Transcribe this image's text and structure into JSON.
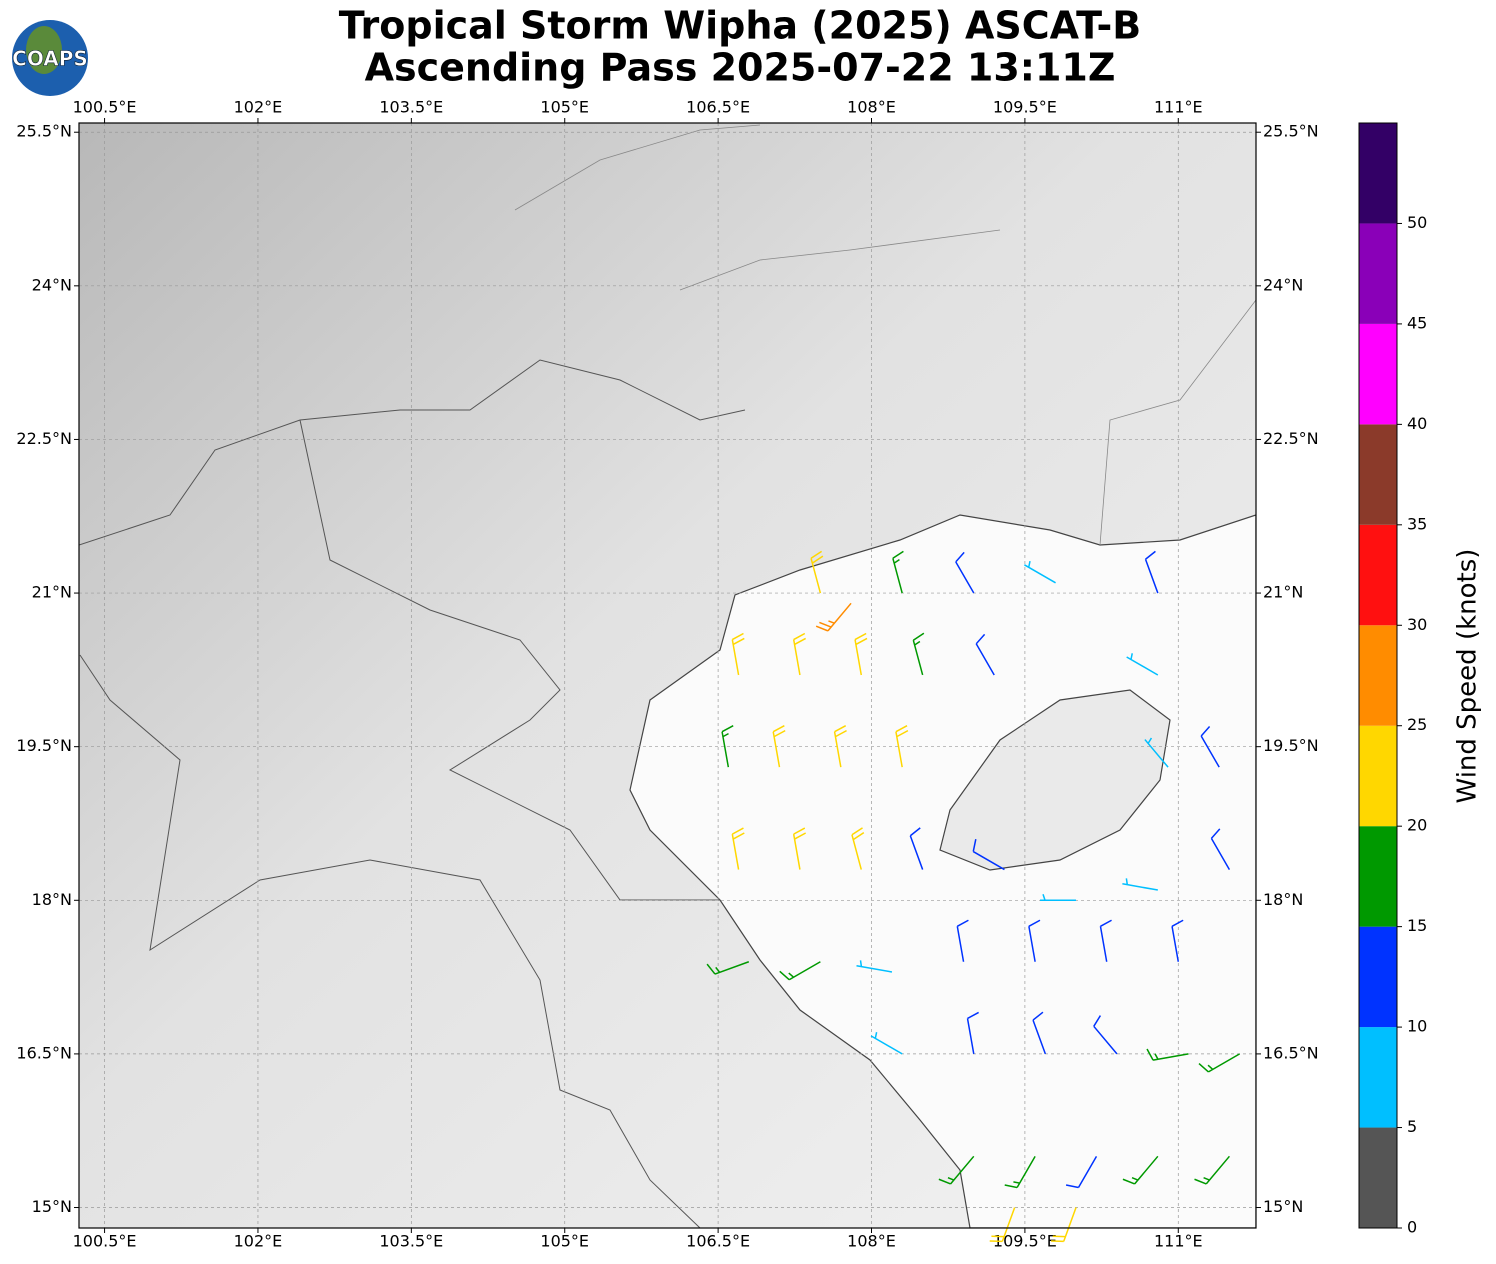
{
  "title": [
    "Tropical Storm Wipha (2025) ASCAT-B",
    "Ascending Pass 2025-07-22 13:11Z"
  ],
  "logo": "COAPS",
  "map": {
    "lonlim": [
      100.25,
      111.76
    ],
    "latlim": [
      14.8,
      25.59
    ],
    "grid": true,
    "lonticks": [
      {
        "value": 100.5,
        "label": "100.5°E"
      },
      {
        "value": 102,
        "label": "102°E"
      },
      {
        "value": 103.5,
        "label": "103.5°E"
      },
      {
        "value": 105,
        "label": "105°E"
      },
      {
        "value": 106.5,
        "label": "106.5°E"
      },
      {
        "value": 108,
        "label": "108°E"
      },
      {
        "value": 109.5,
        "label": "109.5°E"
      },
      {
        "value": 111,
        "label": "111°E"
      }
    ],
    "latticks": [
      {
        "value": 25.5,
        "label": "25.5°N"
      },
      {
        "value": 24,
        "label": "24°N"
      },
      {
        "value": 22.5,
        "label": "22.5°N"
      },
      {
        "value": 21,
        "label": "21°N"
      },
      {
        "value": 19.5,
        "label": "19.5°N"
      },
      {
        "value": 18,
        "label": "18°N"
      },
      {
        "value": 16.5,
        "label": "16.5°N"
      },
      {
        "value": 15,
        "label": "15°N"
      }
    ],
    "barbs": [
      {
        "lon": 107.5,
        "lat": 21.0,
        "speed": 22,
        "dir": 345
      },
      {
        "lon": 108.3,
        "lat": 21.0,
        "speed": 17,
        "dir": 345
      },
      {
        "lon": 109.0,
        "lat": 21.0,
        "speed": 13,
        "dir": 330
      },
      {
        "lon": 109.8,
        "lat": 21.1,
        "speed": 8,
        "dir": 300
      },
      {
        "lon": 110.8,
        "lat": 21.0,
        "speed": 12,
        "dir": 340
      },
      {
        "lon": 107.8,
        "lat": 20.9,
        "speed": 27,
        "dir": 220
      },
      {
        "lon": 106.7,
        "lat": 20.2,
        "speed": 22,
        "dir": 350
      },
      {
        "lon": 107.3,
        "lat": 20.2,
        "speed": 22,
        "dir": 350
      },
      {
        "lon": 107.9,
        "lat": 20.2,
        "speed": 22,
        "dir": 350
      },
      {
        "lon": 108.5,
        "lat": 20.2,
        "speed": 18,
        "dir": 345
      },
      {
        "lon": 109.2,
        "lat": 20.2,
        "speed": 12,
        "dir": 330
      },
      {
        "lon": 110.8,
        "lat": 20.2,
        "speed": 9,
        "dir": 300
      },
      {
        "lon": 106.6,
        "lat": 19.3,
        "speed": 18,
        "dir": 350
      },
      {
        "lon": 107.1,
        "lat": 19.3,
        "speed": 22,
        "dir": 350
      },
      {
        "lon": 107.7,
        "lat": 19.3,
        "speed": 22,
        "dir": 350
      },
      {
        "lon": 108.3,
        "lat": 19.3,
        "speed": 22,
        "dir": 350
      },
      {
        "lon": 110.9,
        "lat": 19.3,
        "speed": 8,
        "dir": 320
      },
      {
        "lon": 111.4,
        "lat": 19.3,
        "speed": 12,
        "dir": 330
      },
      {
        "lon": 106.7,
        "lat": 18.3,
        "speed": 22,
        "dir": 350
      },
      {
        "lon": 107.3,
        "lat": 18.3,
        "speed": 22,
        "dir": 350
      },
      {
        "lon": 107.9,
        "lat": 18.3,
        "speed": 20,
        "dir": 345
      },
      {
        "lon": 108.5,
        "lat": 18.3,
        "speed": 13,
        "dir": 340
      },
      {
        "lon": 109.3,
        "lat": 18.3,
        "speed": 12,
        "dir": 300
      },
      {
        "lon": 110.0,
        "lat": 18.0,
        "speed": 9,
        "dir": 270
      },
      {
        "lon": 110.8,
        "lat": 18.1,
        "speed": 8,
        "dir": 280
      },
      {
        "lon": 111.5,
        "lat": 18.3,
        "speed": 12,
        "dir": 330
      },
      {
        "lon": 106.8,
        "lat": 17.4,
        "speed": 17,
        "dir": 250
      },
      {
        "lon": 107.5,
        "lat": 17.4,
        "speed": 16,
        "dir": 240
      },
      {
        "lon": 108.2,
        "lat": 17.3,
        "speed": 8,
        "dir": 280
      },
      {
        "lon": 108.9,
        "lat": 17.4,
        "speed": 13,
        "dir": 350
      },
      {
        "lon": 109.6,
        "lat": 17.4,
        "speed": 13,
        "dir": 350
      },
      {
        "lon": 110.3,
        "lat": 17.4,
        "speed": 12,
        "dir": 350
      },
      {
        "lon": 111.0,
        "lat": 17.4,
        "speed": 12,
        "dir": 350
      },
      {
        "lon": 108.3,
        "lat": 16.5,
        "speed": 8,
        "dir": 300
      },
      {
        "lon": 109.0,
        "lat": 16.5,
        "speed": 12,
        "dir": 350
      },
      {
        "lon": 109.7,
        "lat": 16.5,
        "speed": 13,
        "dir": 340
      },
      {
        "lon": 110.4,
        "lat": 16.5,
        "speed": 14,
        "dir": 320
      },
      {
        "lon": 111.1,
        "lat": 16.5,
        "speed": 17,
        "dir": 260
      },
      {
        "lon": 111.6,
        "lat": 16.5,
        "speed": 18,
        "dir": 240
      },
      {
        "lon": 109.0,
        "lat": 15.5,
        "speed": 17,
        "dir": 220
      },
      {
        "lon": 109.6,
        "lat": 15.5,
        "speed": 18,
        "dir": 210
      },
      {
        "lon": 110.2,
        "lat": 15.5,
        "speed": 13,
        "dir": 210
      },
      {
        "lon": 110.8,
        "lat": 15.5,
        "speed": 18,
        "dir": 220
      },
      {
        "lon": 111.5,
        "lat": 15.5,
        "speed": 17,
        "dir": 220
      },
      {
        "lon": 109.4,
        "lat": 15.0,
        "speed": 22,
        "dir": 200
      },
      {
        "lon": 110.0,
        "lat": 15.0,
        "speed": 22,
        "dir": 200
      }
    ]
  },
  "colorbar": {
    "label": "Wind Speed (knots)",
    "lim": [
      0,
      55
    ],
    "ticks": [
      0,
      5,
      10,
      15,
      20,
      25,
      30,
      35,
      40,
      45,
      50
    ],
    "bounds": [
      0,
      5,
      10,
      15,
      20,
      25,
      30,
      35,
      40,
      45,
      50,
      55
    ],
    "colors": [
      "#555555",
      "#00bfff",
      "#0033ff",
      "#009900",
      "#ffd700",
      "#ff8c00",
      "#ff1010",
      "#8b3a2a",
      "#ff00ff",
      "#8a00b8",
      "#330066"
    ]
  }
}
